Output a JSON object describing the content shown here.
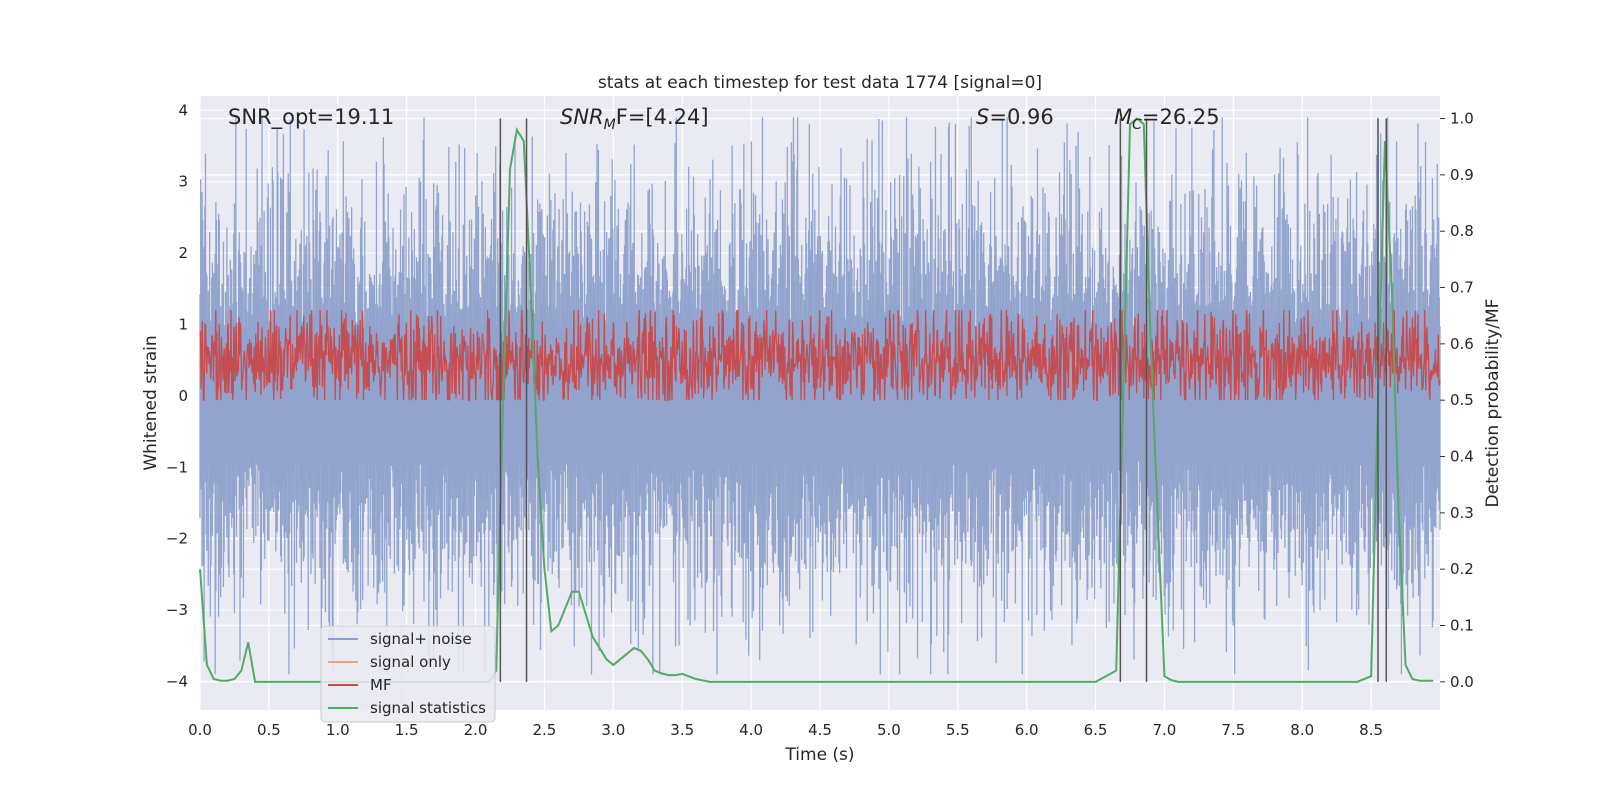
{
  "chart_data": {
    "type": "line",
    "title": "stats at each timestep for test data 1774 [signal=0]",
    "xlabel": "Time (s)",
    "ylabel_left": "Whitened strain",
    "ylabel_right": "Detection probability/MF",
    "xlim": [
      0.0,
      9.0
    ],
    "ylim_left": [
      -4.4,
      4.2
    ],
    "ylim_right": [
      -0.05,
      1.04
    ],
    "x_ticks": [
      "0.0",
      "0.5",
      "1.0",
      "1.5",
      "2.0",
      "2.5",
      "3.0",
      "3.5",
      "4.0",
      "4.5",
      "5.0",
      "5.5",
      "6.0",
      "6.5",
      "7.0",
      "7.5",
      "8.0",
      "8.5"
    ],
    "y_ticks_left": [
      "4",
      "3",
      "2",
      "1",
      "0",
      "−1",
      "−2",
      "−3",
      "−4"
    ],
    "y_ticks_right": [
      "1.0",
      "0.9",
      "0.8",
      "0.7",
      "0.6",
      "0.5",
      "0.4",
      "0.3",
      "0.2",
      "0.1",
      "0.0"
    ],
    "grid": true,
    "legend_position": "lower-left",
    "annotations": {
      "snr_opt": "SNR_opt=19.11",
      "snr_mf_base": "SNR",
      "snr_mf_sub": "M",
      "snr_mf_rest": "F=[4.24]",
      "s_var": "S",
      "s_val": "=0.96",
      "mc_var": "M",
      "mc_sub": "C",
      "mc_val": "=26.25"
    },
    "series": [
      {
        "name": "signal+ noise",
        "color": "#8da0cb",
        "description_range": [
          -3.9,
          3.9
        ]
      },
      {
        "name": "signal only",
        "color": "#e8a48b"
      },
      {
        "name": "MF",
        "color": "#c44e52",
        "range": [
          0.02,
          0.98
        ]
      },
      {
        "name": "signal statistics",
        "color": "#55a868",
        "x": [
          0.0,
          0.05,
          0.1,
          0.15,
          0.2,
          0.25,
          0.3,
          0.35,
          0.4,
          0.45,
          0.5,
          0.55,
          0.6,
          0.7,
          0.8,
          0.9,
          1.0,
          1.2,
          1.4,
          1.6,
          1.8,
          2.0,
          2.1,
          2.15,
          2.2,
          2.25,
          2.3,
          2.35,
          2.4,
          2.45,
          2.5,
          2.55,
          2.6,
          2.65,
          2.7,
          2.75,
          2.8,
          2.85,
          2.9,
          2.95,
          3.0,
          3.05,
          3.1,
          3.15,
          3.2,
          3.25,
          3.3,
          3.35,
          3.4,
          3.45,
          3.5,
          3.6,
          3.7,
          3.75,
          3.8,
          3.85,
          3.9,
          4.0,
          4.5,
          5.0,
          5.5,
          6.0,
          6.5,
          6.65,
          6.7,
          6.75,
          6.8,
          6.85,
          6.9,
          6.95,
          7.0,
          7.05,
          7.1,
          7.5,
          8.0,
          8.4,
          8.5,
          8.55,
          8.6,
          8.65,
          8.7,
          8.75,
          8.8,
          8.85,
          8.9,
          8.95
        ],
        "y": [
          0.2,
          0.03,
          0.005,
          0.002,
          0.002,
          0.005,
          0.02,
          0.07,
          0.0,
          0.0,
          0.0,
          0.0,
          0.0,
          0.0,
          0.0,
          0.0,
          0.0,
          0.0,
          0.0,
          0.0,
          0.0,
          0.0,
          0.0,
          0.02,
          0.5,
          0.91,
          0.98,
          0.96,
          0.7,
          0.4,
          0.2,
          0.09,
          0.1,
          0.13,
          0.16,
          0.16,
          0.12,
          0.08,
          0.06,
          0.04,
          0.03,
          0.04,
          0.05,
          0.06,
          0.055,
          0.04,
          0.02,
          0.015,
          0.012,
          0.012,
          0.014,
          0.005,
          0.0,
          0.0,
          0.0,
          0.0,
          0.0,
          0.0,
          0.0,
          0.0,
          0.0,
          0.0,
          0.0,
          0.02,
          0.5,
          0.99,
          1.0,
          0.99,
          0.6,
          0.3,
          0.01,
          0.003,
          0.0,
          0.0,
          0.0,
          0.0,
          0.01,
          0.5,
          0.96,
          0.7,
          0.3,
          0.03,
          0.005,
          0.002,
          0.002,
          0.002
        ]
      }
    ],
    "vertical_lines_x": [
      2.18,
      2.37,
      6.68,
      6.87,
      8.55,
      8.61
    ],
    "vertical_line_color": "#555555"
  }
}
